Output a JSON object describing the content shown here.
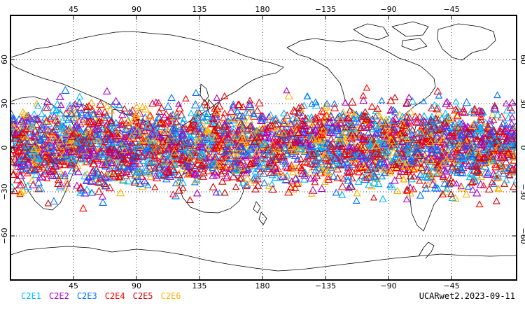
{
  "map": {
    "top_lon_labels": [
      "45",
      "90",
      "135",
      "180",
      "−135",
      "−90",
      "−45"
    ],
    "bottom_lon_labels": [
      "45",
      "90",
      "135",
      "180",
      "−135",
      "−90",
      "−45"
    ],
    "left_lat_labels": [
      "60",
      "30",
      "0",
      "−30",
      "−60"
    ],
    "right_lat_labels": [
      "60",
      "30",
      "0",
      "−30",
      "−60"
    ],
    "point_count_visual": "dense global occultation triangles"
  },
  "legend": {
    "items": [
      {
        "label": "C2E1",
        "color": "#00b8ff"
      },
      {
        "label": "C2E2",
        "color": "#a800c8"
      },
      {
        "label": "C2E3",
        "color": "#0070ff"
      },
      {
        "label": "C2E4",
        "color": "#ff0000"
      },
      {
        "label": "C2E5",
        "color": "#d20000"
      },
      {
        "label": "C2E6",
        "color": "#ffb000"
      }
    ]
  },
  "footer": {
    "label": "UCARwet2.2023-09-11"
  }
}
